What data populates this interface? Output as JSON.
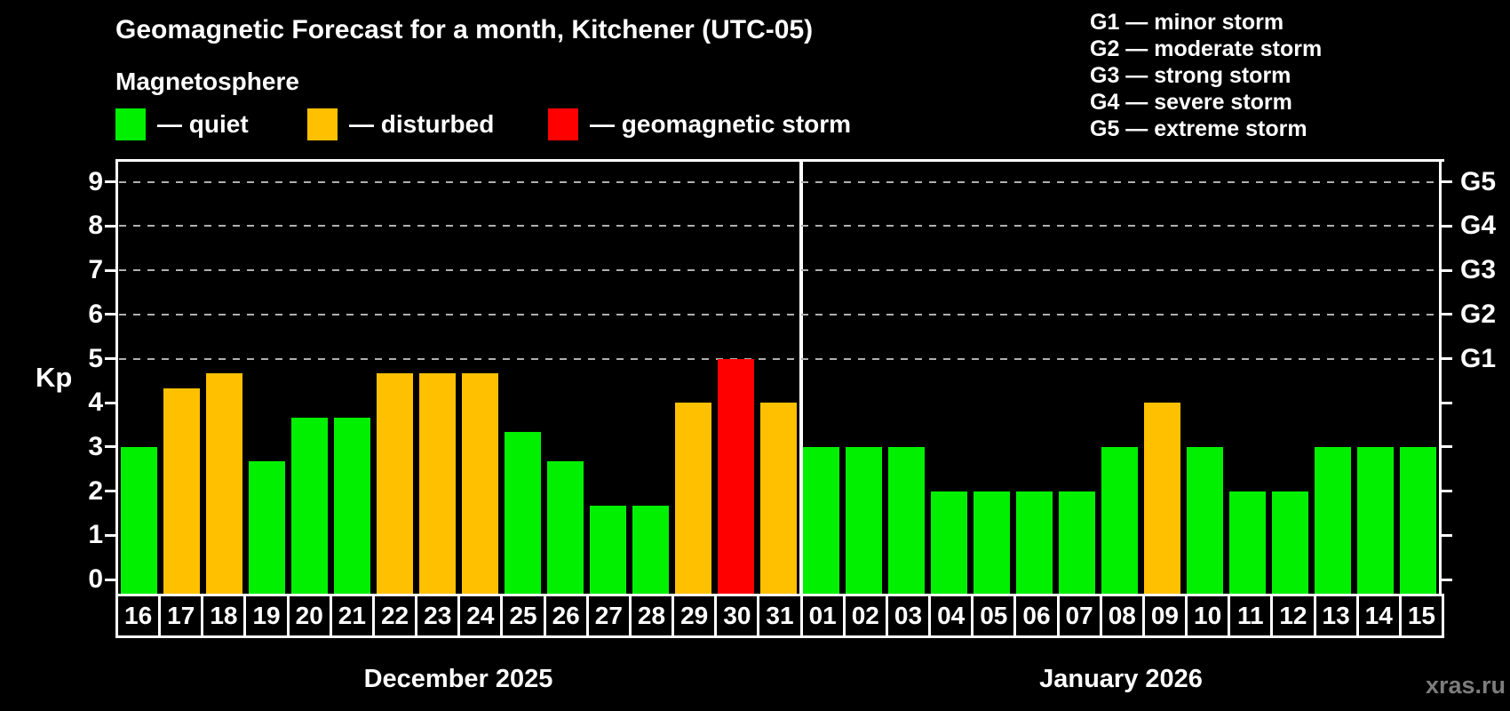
{
  "header": {
    "title": "Geomagnetic Forecast for a month, Kitchener (UTC-05)",
    "subtitle": "Magnetosphere"
  },
  "legend": {
    "quiet": "— quiet",
    "disturbed": "— disturbed",
    "storm": "— geomagnetic storm"
  },
  "storm_scale": {
    "g1": "G1 — minor storm",
    "g2": "G2 — moderate storm",
    "g3": "G3 — strong storm",
    "g4": "G4 — severe storm",
    "g5": "G5 — extreme storm"
  },
  "watermark": "xras.ru",
  "colors": {
    "quiet": "#00f000",
    "disturbed": "#ffc000",
    "storm": "#ff0000",
    "axis": "#ffffff",
    "gridline": "#b0b0b0"
  },
  "chart_data": {
    "type": "bar",
    "title": "Geomagnetic Forecast for a month, Kitchener (UTC-05)",
    "xlabel": "",
    "ylabel": "Kp",
    "ylim": [
      0,
      9
    ],
    "y_ticks": [
      0,
      1,
      2,
      3,
      4,
      5,
      6,
      7,
      8,
      9
    ],
    "gridlines_at_kp": [
      5,
      6,
      7,
      8,
      9
    ],
    "grid": "dashed horizontal lines at Kp 5-9 only",
    "legend_position": "top-left",
    "right_axis_labels": [
      {
        "label": "G1",
        "kp": 5
      },
      {
        "label": "G2",
        "kp": 6
      },
      {
        "label": "G3",
        "kp": 7
      },
      {
        "label": "G4",
        "kp": 8
      },
      {
        "label": "G5",
        "kp": 9
      }
    ],
    "series": [
      {
        "month": "December 2025",
        "days": [
          "16",
          "17",
          "18",
          "19",
          "20",
          "21",
          "22",
          "23",
          "24",
          "25",
          "26",
          "27",
          "28",
          "29",
          "30",
          "31"
        ],
        "kp": [
          3,
          4.33,
          4.67,
          2.67,
          3.67,
          3.67,
          4.67,
          4.67,
          4.67,
          3.33,
          2.67,
          1.67,
          1.67,
          4,
          5,
          4
        ],
        "status": [
          "quiet",
          "disturbed",
          "disturbed",
          "quiet",
          "quiet",
          "quiet",
          "disturbed",
          "disturbed",
          "disturbed",
          "quiet",
          "quiet",
          "quiet",
          "quiet",
          "disturbed",
          "storm",
          "disturbed"
        ]
      },
      {
        "month": "January 2026",
        "days": [
          "01",
          "02",
          "03",
          "04",
          "05",
          "06",
          "07",
          "08",
          "09",
          "10",
          "11",
          "12",
          "13",
          "14",
          "15"
        ],
        "kp": [
          3,
          3,
          3,
          2,
          2,
          2,
          2,
          3,
          4,
          3,
          2,
          2,
          3,
          3,
          3
        ],
        "status": [
          "quiet",
          "quiet",
          "quiet",
          "quiet",
          "quiet",
          "quiet",
          "quiet",
          "quiet",
          "disturbed",
          "quiet",
          "quiet",
          "quiet",
          "quiet",
          "quiet",
          "quiet"
        ]
      }
    ]
  }
}
